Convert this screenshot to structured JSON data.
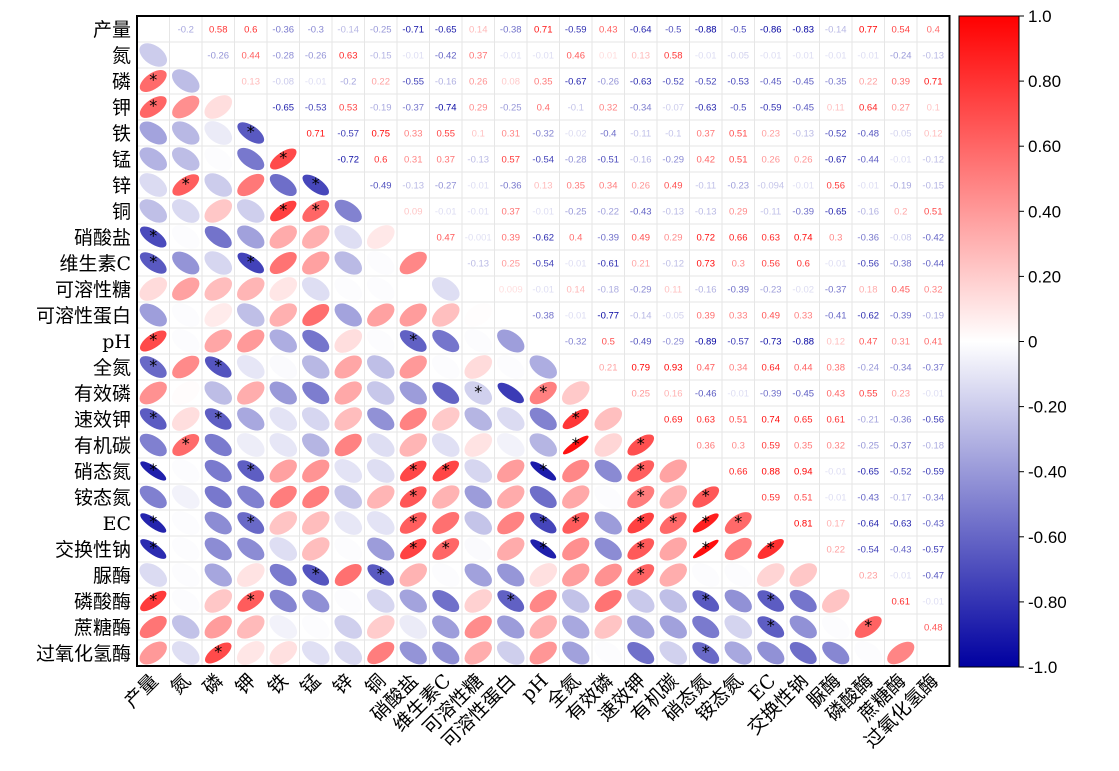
{
  "chart_data": {
    "type": "heatmap",
    "variables": [
      "产量",
      "氮",
      "磷",
      "钾",
      "铁",
      "锰",
      "锌",
      "铜",
      "硝酸盐",
      "维生素C",
      "可溶性糖",
      "可溶性蛋白",
      "pH",
      "全氮",
      "有效磷",
      "速效钾",
      "有机碳",
      "硝态氮",
      "铵态氮",
      "EC",
      "交换性钠",
      "脲酶",
      "磷酸酶",
      "蔗糖酶",
      "过氧化氢酶"
    ],
    "upper_triangle_values": [
      [
        -0.2,
        0.58,
        0.6,
        -0.36,
        -0.3,
        -0.14,
        -0.25,
        -0.71,
        -0.65,
        0.14,
        -0.38,
        0.71,
        -0.59,
        0.43,
        -0.64,
        -0.5,
        -0.88,
        -0.5,
        -0.86,
        -0.83,
        -0.14,
        0.77,
        0.54,
        0.4
      ],
      [
        -0.26,
        0.44,
        -0.28,
        -0.26,
        0.63,
        -0.15,
        -0.01,
        -0.42,
        0.37,
        -0.01,
        -0.01,
        0.46,
        0.01,
        0.13,
        0.58,
        -0.01,
        -0.05,
        -0.01,
        -0.01,
        -0.01,
        -0.01,
        -0.24,
        -0.13,
        0.12
      ],
      [
        0.13,
        -0.08,
        -0.01,
        -0.2,
        0.22,
        -0.55,
        -0.16,
        0.26,
        0.08,
        0.35,
        -0.67,
        -0.26,
        -0.63,
        -0.52,
        -0.52,
        -0.53,
        -0.45,
        -0.45,
        -0.35,
        0.22,
        0.39,
        0.71
      ],
      [
        -0.65,
        -0.53,
        0.53,
        -0.19,
        -0.37,
        -0.74,
        0.29,
        -0.25,
        0.4,
        -0.1,
        0.32,
        -0.34,
        -0.07,
        -0.63,
        -0.5,
        -0.59,
        -0.45,
        0.11,
        0.64,
        0.27,
        0.1
      ],
      [
        0.71,
        -0.57,
        0.75,
        0.33,
        0.55,
        0.1,
        0.31,
        -0.32,
        -0.02,
        -0.4,
        -0.11,
        -0.1,
        0.37,
        0.51,
        0.23,
        -0.13,
        -0.52,
        -0.48,
        -0.05,
        0.12
      ],
      [
        -0.72,
        0.6,
        0.31,
        0.37,
        -0.13,
        0.57,
        -0.54,
        -0.28,
        -0.51,
        -0.16,
        -0.29,
        0.42,
        0.51,
        0.26,
        0.26,
        -0.67,
        -0.44,
        -0.01,
        -0.12
      ],
      [
        -0.49,
        -0.13,
        -0.27,
        -0.01,
        -0.36,
        0.13,
        0.35,
        0.34,
        0.26,
        0.49,
        -0.11,
        -0.23,
        -0.094,
        -0.01,
        0.56,
        -0.01,
        -0.19,
        -0.15
      ],
      [
        0.09,
        -0.01,
        -0.01,
        0.37,
        -0.01,
        -0.25,
        -0.22,
        -0.43,
        -0.13,
        -0.13,
        0.29,
        -0.11,
        -0.39,
        -0.65,
        -0.16,
        0.2,
        0.51
      ],
      [
        0.47,
        -0.001,
        0.39,
        -0.62,
        0.4,
        -0.39,
        0.49,
        0.29,
        0.72,
        0.66,
        0.63,
        0.74,
        0.3,
        -0.36,
        -0.08,
        -0.42
      ],
      [
        -0.13,
        0.25,
        -0.54,
        -0.01,
        -0.61,
        0.21,
        -0.12,
        0.73,
        0.3,
        0.56,
        0.6,
        -0.01,
        -0.56,
        -0.38,
        -0.44
      ],
      [
        0.009,
        -0.01,
        0.14,
        -0.18,
        -0.29,
        0.11,
        -0.16,
        -0.39,
        -0.23,
        -0.02,
        -0.37,
        0.18,
        0.45,
        0.32
      ],
      [
        -0.38,
        -0.01,
        -0.77,
        -0.14,
        -0.05,
        0.39,
        0.33,
        0.49,
        0.33,
        -0.41,
        -0.62,
        -0.39,
        -0.19
      ],
      [
        -0.32,
        0.5,
        -0.49,
        -0.29,
        -0.89,
        -0.57,
        -0.73,
        -0.88,
        0.12,
        0.47,
        0.31,
        0.41
      ],
      [
        0.21,
        0.79,
        0.93,
        0.47,
        0.34,
        0.64,
        0.44,
        0.38,
        -0.24,
        -0.34,
        -0.37
      ],
      [
        0.25,
        0.16,
        -0.46,
        -0.01,
        -0.39,
        -0.45,
        0.43,
        0.55,
        0.23,
        -0.01
      ],
      [
        0.69,
        0.63,
        0.51,
        0.74,
        0.65,
        0.61,
        -0.21,
        -0.36,
        -0.56
      ],
      [
        0.36,
        0.3,
        0.59,
        0.35,
        0.32,
        -0.25,
        -0.37,
        -0.18
      ],
      [
        0.66,
        0.88,
        0.94,
        -0.01,
        -0.65,
        -0.52,
        -0.59
      ],
      [
        0.59,
        0.51,
        -0.01,
        -0.43,
        -0.17,
        -0.34
      ],
      [
        0.81,
        0.17,
        -0.64,
        -0.63,
        -0.43
      ],
      [
        0.22,
        -0.54,
        -0.43,
        -0.57
      ],
      [
        0.23,
        -0.01,
        -0.47
      ],
      [
        0.61,
        -0.01
      ],
      [
        0.48
      ],
      []
    ],
    "significant_pairs": [
      [
        2,
        0
      ],
      [
        3,
        0
      ],
      [
        4,
        3
      ],
      [
        5,
        4
      ],
      [
        6,
        1
      ],
      [
        6,
        5
      ],
      [
        7,
        4
      ],
      [
        7,
        5
      ],
      [
        8,
        0
      ],
      [
        9,
        0
      ],
      [
        9,
        3
      ],
      [
        12,
        0
      ],
      [
        12,
        8
      ],
      [
        13,
        0
      ],
      [
        13,
        2
      ],
      [
        14,
        10
      ],
      [
        14,
        12
      ],
      [
        15,
        0
      ],
      [
        15,
        2
      ],
      [
        15,
        13
      ],
      [
        16,
        1
      ],
      [
        16,
        13
      ],
      [
        16,
        15
      ],
      [
        17,
        0
      ],
      [
        17,
        3
      ],
      [
        17,
        8
      ],
      [
        17,
        9
      ],
      [
        17,
        12
      ],
      [
        17,
        15
      ],
      [
        18,
        8
      ],
      [
        18,
        15
      ],
      [
        18,
        17
      ],
      [
        19,
        0
      ],
      [
        19,
        3
      ],
      [
        19,
        8
      ],
      [
        19,
        12
      ],
      [
        19,
        13
      ],
      [
        19,
        15
      ],
      [
        19,
        16
      ],
      [
        19,
        17
      ],
      [
        19,
        18
      ],
      [
        20,
        0
      ],
      [
        20,
        8
      ],
      [
        20,
        9
      ],
      [
        20,
        12
      ],
      [
        20,
        15
      ],
      [
        20,
        17
      ],
      [
        20,
        19
      ],
      [
        21,
        5
      ],
      [
        21,
        7
      ],
      [
        21,
        15
      ],
      [
        22,
        0
      ],
      [
        22,
        3
      ],
      [
        22,
        11
      ],
      [
        22,
        17
      ],
      [
        22,
        19
      ],
      [
        23,
        19
      ],
      [
        23,
        22
      ],
      [
        24,
        2
      ],
      [
        24,
        17
      ]
    ],
    "colorbar": {
      "range": [
        -1.0,
        1.0
      ],
      "ticks": [
        "1.0",
        "0.80",
        "0.60",
        "0.40",
        "0.20",
        "0",
        "-0.20",
        "-0.40",
        "-0.60",
        "-0.80",
        "-1.0"
      ],
      "colors": {
        "positive": "#ff0000",
        "neutral": "#ffffff",
        "negative": "#0000a0"
      }
    }
  }
}
